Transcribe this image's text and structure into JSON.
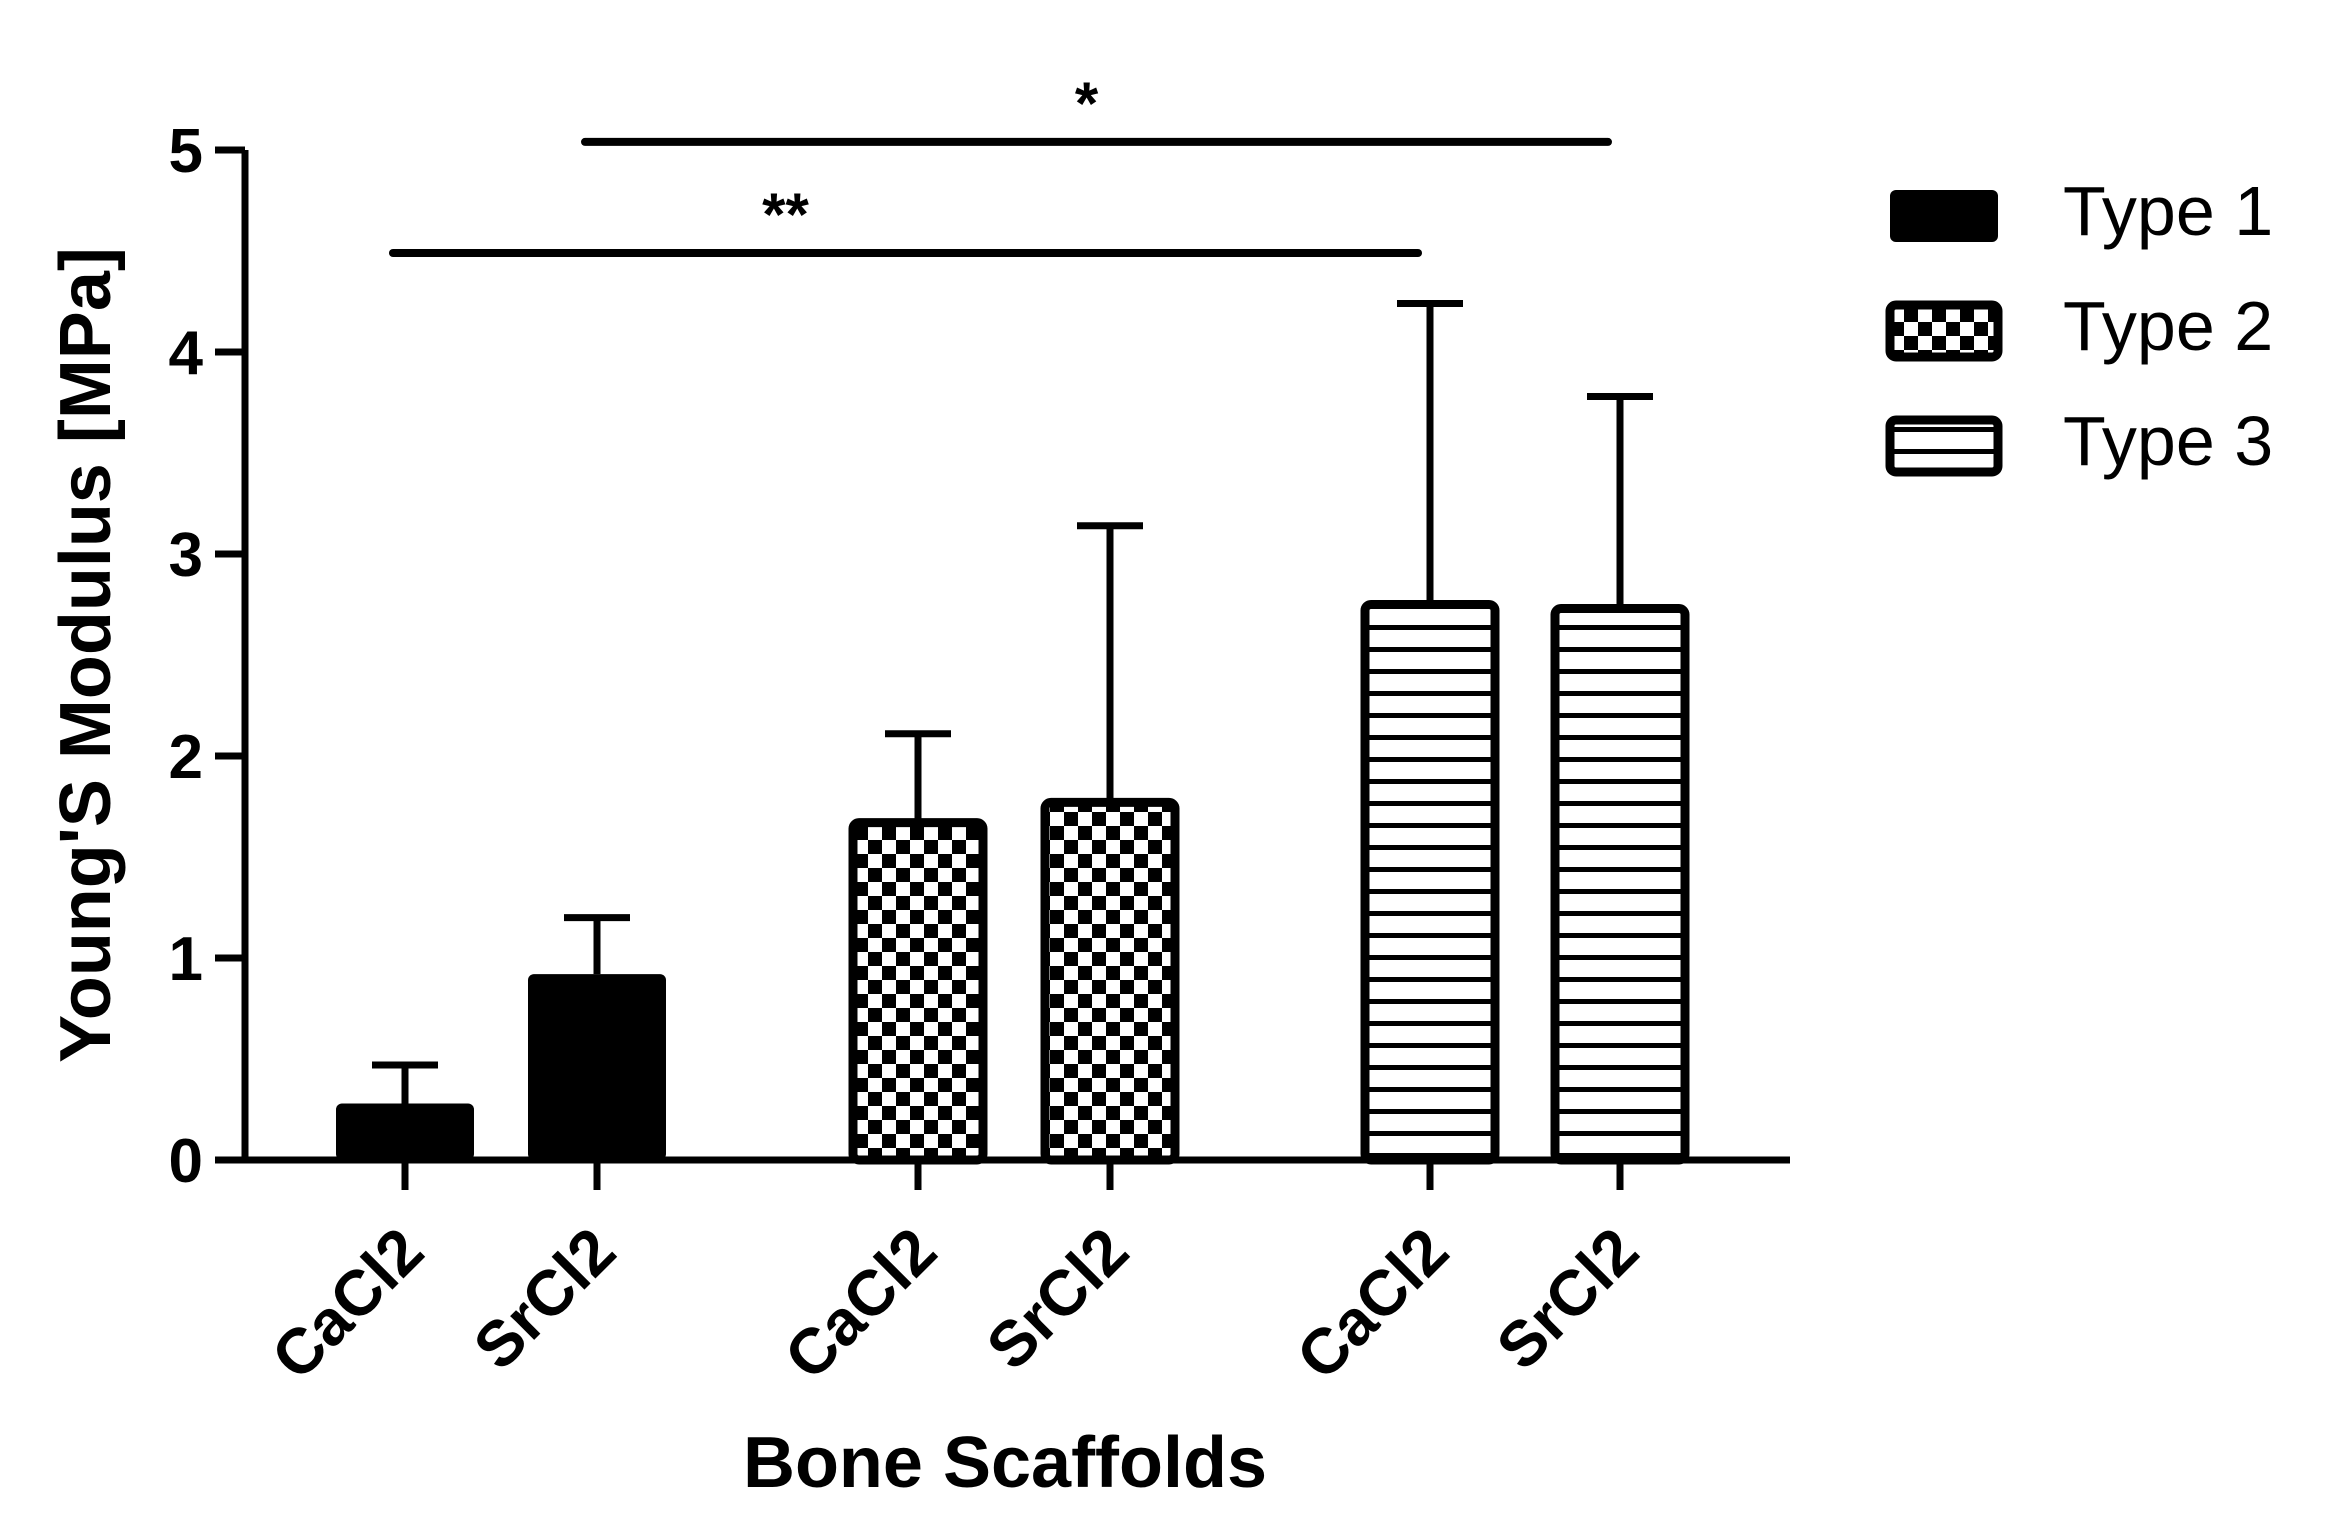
{
  "chart_data": {
    "type": "bar",
    "title": "",
    "xlabel": "Bone Scaffolds",
    "ylabel": "Young'S Modulus [MPa]",
    "ylim": [
      0,
      5
    ],
    "yticks": [
      "0",
      "1",
      "2",
      "3",
      "4",
      "5"
    ],
    "grid": false,
    "legend_position": "top-right",
    "bars": [
      {
        "category": "CaCl2",
        "series": "Type 1",
        "value": 0.28,
        "error": 0.19
      },
      {
        "category": "SrCl2",
        "series": "Type 1",
        "value": 0.92,
        "error": 0.28
      },
      {
        "category": "CaCl2",
        "series": "Type 2",
        "value": 1.69,
        "error": 0.42
      },
      {
        "category": "SrCl2",
        "series": "Type 2",
        "value": 1.79,
        "error": 1.35
      },
      {
        "category": "CaCl2",
        "series": "Type 3",
        "value": 2.77,
        "error": 1.47
      },
      {
        "category": "SrCl2",
        "series": "Type 3",
        "value": 2.75,
        "error": 1.03
      }
    ],
    "series": [
      {
        "name": "Type 1",
        "pattern": "solid"
      },
      {
        "name": "Type 2",
        "pattern": "checker"
      },
      {
        "name": "Type 3",
        "pattern": "horizontal-stripes"
      }
    ],
    "annotations": [
      {
        "label": "**",
        "from_bar": 0,
        "to_bar": 4,
        "y": 4.5
      },
      {
        "label": "*",
        "from_bar": 1,
        "to_bar": 5,
        "y": 5.05
      }
    ],
    "colors": {
      "bar": "#000000",
      "background": "#ffffff"
    }
  }
}
